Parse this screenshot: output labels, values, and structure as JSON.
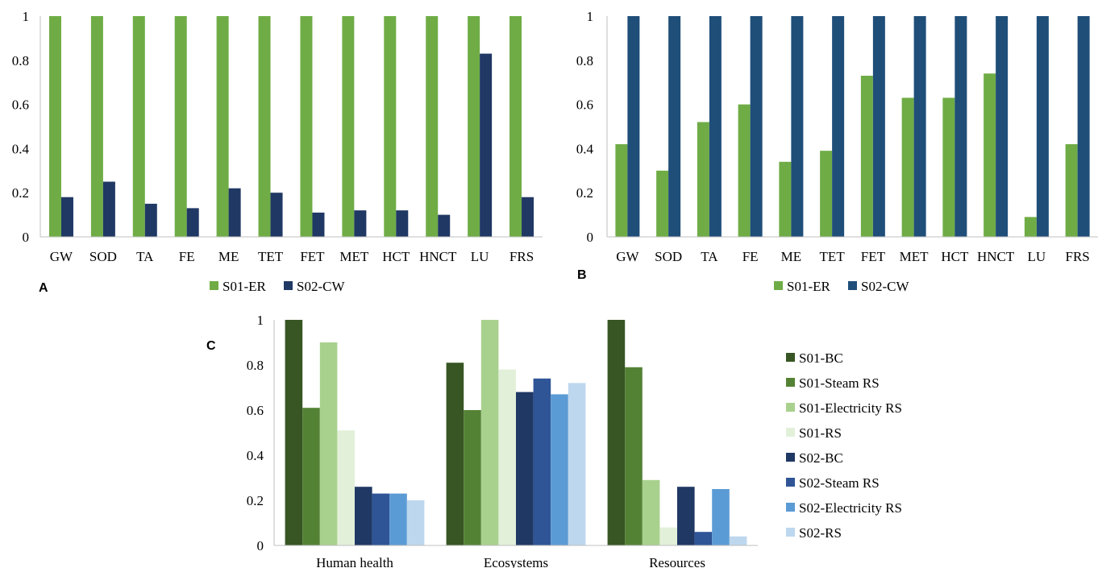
{
  "colors": {
    "er": "#6fac46",
    "cw_a": "#203864",
    "cw_b": "#1f4e79",
    "s01_bc": "#375623",
    "s01_steam": "#548235",
    "s01_elec": "#a9d18e",
    "s01_rs": "#e2f0d9",
    "s02_bc": "#203864",
    "s02_steam": "#2f5597",
    "s02_elec": "#5b9bd5",
    "s02_rs": "#bdd7ee",
    "axis": "#bfbfbf"
  },
  "panel_labels": {
    "a": "A",
    "b": "B",
    "c": "C"
  },
  "chart_data": [
    {
      "id": "A",
      "type": "bar",
      "categories": [
        "GW",
        "SOD",
        "TA",
        "FE",
        "ME",
        "TET",
        "FET",
        "MET",
        "HCT",
        "HNCT",
        "LU",
        "FRS"
      ],
      "series": [
        {
          "name": "S01-ER",
          "color_key": "er",
          "values": [
            1,
            1,
            1,
            1,
            1,
            1,
            1,
            1,
            1,
            1,
            1,
            1
          ]
        },
        {
          "name": "S02-CW",
          "color_key": "cw_a",
          "values": [
            0.18,
            0.25,
            0.15,
            0.13,
            0.22,
            0.2,
            0.11,
            0.12,
            0.12,
            0.1,
            0.83,
            0.18
          ]
        }
      ],
      "yticks": [
        "0",
        "0.2",
        "0.4",
        "0.6",
        "0.8",
        "1"
      ],
      "ylim": [
        0,
        1
      ],
      "gridlines": false,
      "legend_position": "bottom"
    },
    {
      "id": "B",
      "type": "bar",
      "categories": [
        "GW",
        "SOD",
        "TA",
        "FE",
        "ME",
        "TET",
        "FET",
        "MET",
        "HCT",
        "HNCT",
        "LU",
        "FRS"
      ],
      "series": [
        {
          "name": "S01-ER",
          "color_key": "er",
          "values": [
            0.42,
            0.3,
            0.52,
            0.6,
            0.34,
            0.39,
            0.73,
            0.63,
            0.63,
            0.74,
            0.09,
            0.42
          ]
        },
        {
          "name": "S02-CW",
          "color_key": "cw_b",
          "values": [
            1,
            1,
            1,
            1,
            1,
            1,
            1,
            1,
            1,
            1,
            1,
            1
          ]
        }
      ],
      "yticks": [
        "0",
        "0.2",
        "0.4",
        "0.6",
        "0.8",
        "1"
      ],
      "ylim": [
        0,
        1
      ],
      "gridlines": false,
      "legend_position": "bottom"
    },
    {
      "id": "C",
      "type": "bar",
      "categories": [
        "Human health",
        "Ecosystems",
        "Resources"
      ],
      "series": [
        {
          "name": "S01-BC",
          "color_key": "s01_bc",
          "values": [
            1,
            0.81,
            1
          ]
        },
        {
          "name": "S01-Steam RS",
          "color_key": "s01_steam",
          "values": [
            0.61,
            0.6,
            0.79
          ]
        },
        {
          "name": "S01-Electricity RS",
          "color_key": "s01_elec",
          "values": [
            0.9,
            1,
            0.29
          ]
        },
        {
          "name": "S01-RS",
          "color_key": "s01_rs",
          "values": [
            0.51,
            0.78,
            0.08
          ]
        },
        {
          "name": "S02-BC",
          "color_key": "s02_bc",
          "values": [
            0.26,
            0.68,
            0.26
          ]
        },
        {
          "name": "S02-Steam RS",
          "color_key": "s02_steam",
          "values": [
            0.23,
            0.74,
            0.06
          ]
        },
        {
          "name": "S02-Electricity RS",
          "color_key": "s02_elec",
          "values": [
            0.23,
            0.67,
            0.25
          ]
        },
        {
          "name": "S02-RS",
          "color_key": "s02_rs",
          "values": [
            0.2,
            0.72,
            0.04
          ]
        }
      ],
      "yticks": [
        "0",
        "0.2",
        "0.4",
        "0.6",
        "0.8",
        "1"
      ],
      "ylim": [
        0,
        1
      ],
      "gridlines": false,
      "legend_position": "right"
    }
  ]
}
